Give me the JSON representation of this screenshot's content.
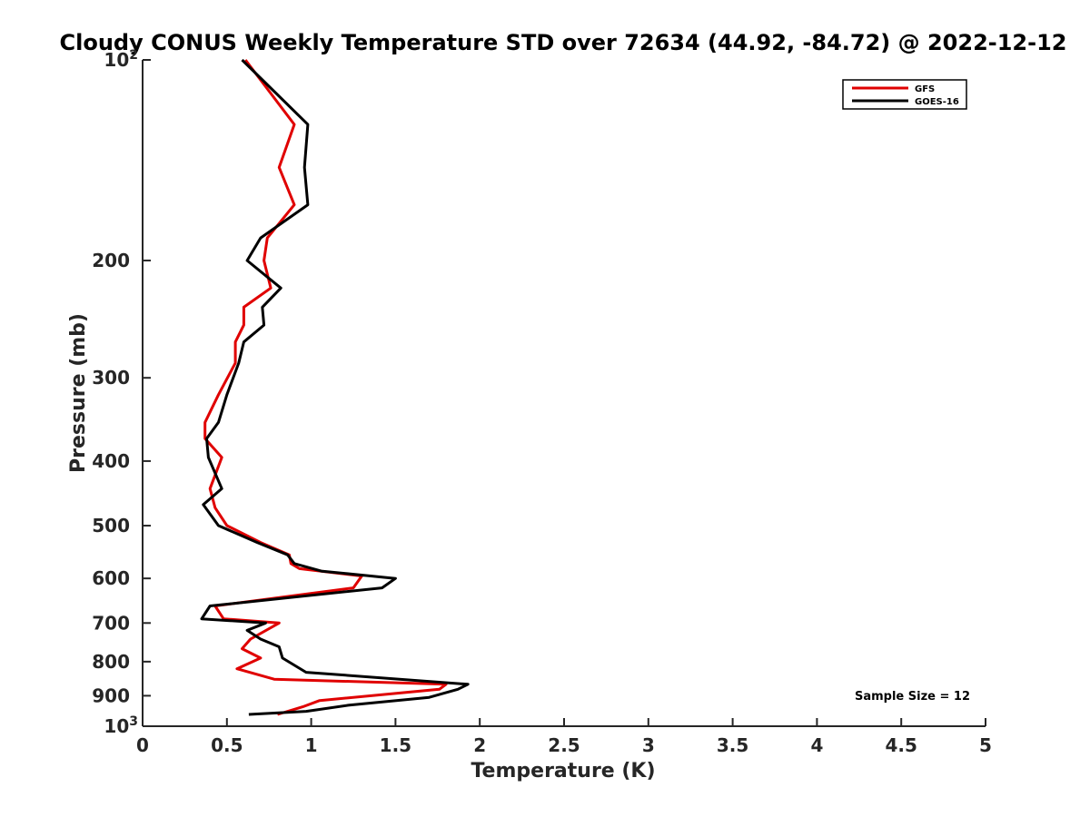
{
  "chart_data": {
    "type": "line",
    "title": "Cloudy CONUS Weekly Temperature STD over 72634 (44.92, -84.72) @ 2022-12-12",
    "xlabel": "Temperature (K)",
    "ylabel": "Pressure (mb)",
    "xlim": [
      0,
      5
    ],
    "ylim": [
      100,
      1000
    ],
    "y_scale": "log",
    "y_reversed": true,
    "grid": false,
    "legend_position": "top-right",
    "x_ticks": [
      "0",
      "0.5",
      "1",
      "1.5",
      "2",
      "2.5",
      "3",
      "3.5",
      "4",
      "4.5",
      "5"
    ],
    "y_ticks": [
      {
        "value": 100,
        "label": "10",
        "sup": "2"
      },
      {
        "value": 200,
        "label": "200",
        "sup": ""
      },
      {
        "value": 300,
        "label": "300",
        "sup": ""
      },
      {
        "value": 400,
        "label": "400",
        "sup": ""
      },
      {
        "value": 500,
        "label": "500",
        "sup": ""
      },
      {
        "value": 600,
        "label": "600",
        "sup": ""
      },
      {
        "value": 700,
        "label": "700",
        "sup": ""
      },
      {
        "value": 800,
        "label": "800",
        "sup": ""
      },
      {
        "value": 900,
        "label": "900",
        "sup": ""
      },
      {
        "value": 1000,
        "label": "10",
        "sup": "3"
      }
    ],
    "annotation": "Sample Size = 12",
    "series": [
      {
        "name": "GFS",
        "color": "#e00000",
        "points": [
          [
            0.61,
            100
          ],
          [
            0.9,
            125
          ],
          [
            0.81,
            145
          ],
          [
            0.9,
            165
          ],
          [
            0.74,
            185
          ],
          [
            0.72,
            200
          ],
          [
            0.76,
            220
          ],
          [
            0.6,
            235
          ],
          [
            0.6,
            250
          ],
          [
            0.55,
            265
          ],
          [
            0.55,
            285
          ],
          [
            0.45,
            318
          ],
          [
            0.37,
            350
          ],
          [
            0.37,
            370
          ],
          [
            0.47,
            395
          ],
          [
            0.4,
            440
          ],
          [
            0.43,
            470
          ],
          [
            0.5,
            500
          ],
          [
            0.7,
            530
          ],
          [
            0.87,
            553
          ],
          [
            0.88,
            570
          ],
          [
            0.93,
            580
          ],
          [
            1.3,
            595
          ],
          [
            1.25,
            620
          ],
          [
            0.43,
            660
          ],
          [
            0.48,
            690
          ],
          [
            0.81,
            700
          ],
          [
            0.64,
            740
          ],
          [
            0.59,
            765
          ],
          [
            0.7,
            790
          ],
          [
            0.56,
            820
          ],
          [
            0.78,
            850
          ],
          [
            1.8,
            865
          ],
          [
            1.76,
            880
          ],
          [
            1.05,
            915
          ],
          [
            0.95,
            935
          ],
          [
            0.8,
            960
          ]
        ]
      },
      {
        "name": "GOES-16",
        "color": "#000000",
        "points": [
          [
            0.59,
            100
          ],
          [
            0.98,
            125
          ],
          [
            0.96,
            145
          ],
          [
            0.98,
            165
          ],
          [
            0.7,
            185
          ],
          [
            0.62,
            200
          ],
          [
            0.82,
            220
          ],
          [
            0.71,
            235
          ],
          [
            0.72,
            250
          ],
          [
            0.6,
            265
          ],
          [
            0.57,
            285
          ],
          [
            0.5,
            318
          ],
          [
            0.45,
            350
          ],
          [
            0.38,
            370
          ],
          [
            0.39,
            395
          ],
          [
            0.47,
            440
          ],
          [
            0.36,
            465
          ],
          [
            0.45,
            500
          ],
          [
            0.68,
            530
          ],
          [
            0.86,
            553
          ],
          [
            0.9,
            570
          ],
          [
            1.06,
            585
          ],
          [
            1.5,
            600
          ],
          [
            1.42,
            620
          ],
          [
            0.4,
            660
          ],
          [
            0.35,
            690
          ],
          [
            0.73,
            700
          ],
          [
            0.62,
            718
          ],
          [
            0.7,
            740
          ],
          [
            0.81,
            760
          ],
          [
            0.83,
            790
          ],
          [
            0.97,
            830
          ],
          [
            1.93,
            865
          ],
          [
            1.87,
            880
          ],
          [
            1.7,
            905
          ],
          [
            1.22,
            930
          ],
          [
            0.97,
            950
          ],
          [
            0.63,
            960
          ]
        ]
      }
    ]
  }
}
